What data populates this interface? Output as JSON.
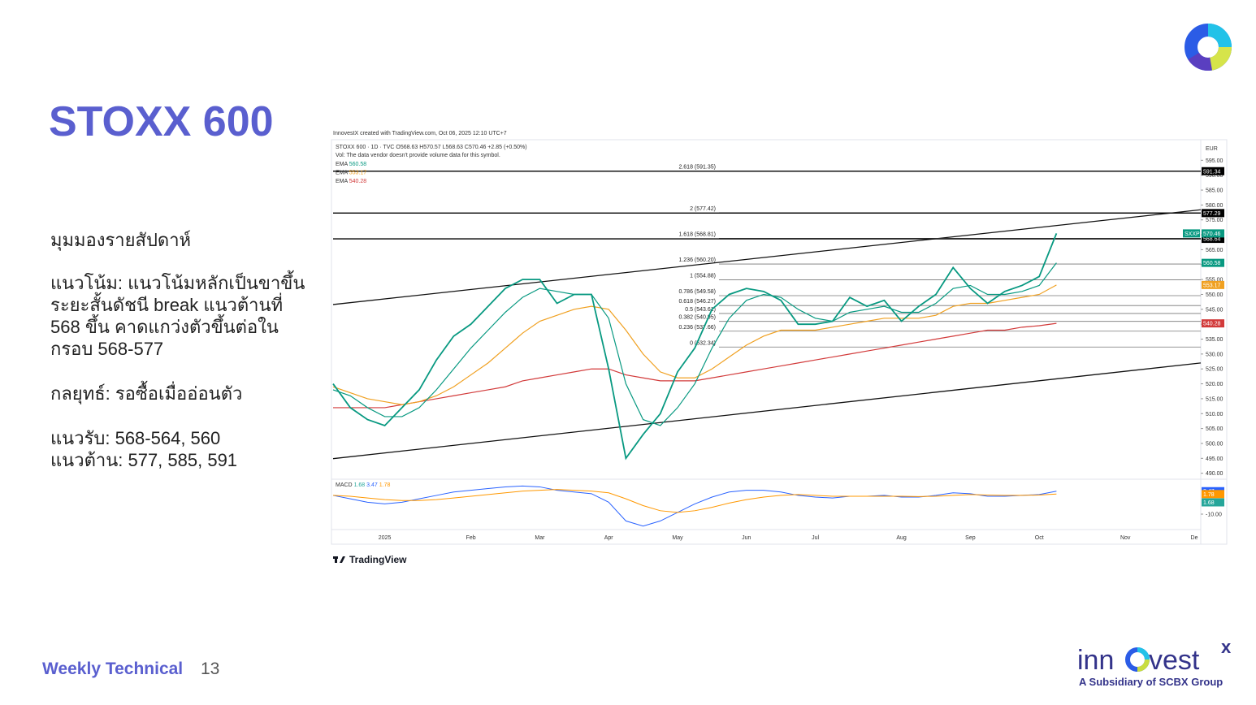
{
  "header": {
    "title": "STOXX 600"
  },
  "commentary": {
    "heading": "มุมมองรายสัปดาห์",
    "trend_lines": [
      "แนวโน้ม: แนวโน้มหลักเป็นขาขึ้น",
      "ระยะสั้นดัชนี break แนวต้านที่",
      "568 ขึ้น คาดแกว่งตัวขึ้นต่อใน",
      "กรอบ 568-577"
    ],
    "strategy": "กลยุทธ์: รอซื้อเมื่ออ่อนตัว",
    "support": "แนวรับ: 568-564, 560",
    "resistance": "แนวต้าน: 577, 585, 591"
  },
  "chart_data": {
    "type": "line",
    "credit": "InnovestX created with TradingView.com, Oct 06, 2025 12:10 UTC+7",
    "symbol_line": "STOXX 600 · 1D · TVC   O568.63 H570.57 L568.63 C570.46 +2.85 (+0.50%)",
    "volume_note": "Vol: The data vendor doesn't provide volume data for this symbol.",
    "currency": "EUR",
    "brand": "TradingView",
    "categories": [
      null,
      null,
      null,
      "2025",
      null,
      null,
      null,
      null,
      "Feb",
      null,
      null,
      null,
      "Mar",
      null,
      null,
      null,
      "Apr",
      null,
      null,
      null,
      "May",
      null,
      null,
      null,
      "Jun",
      null,
      null,
      null,
      "Jul",
      null,
      null,
      null,
      null,
      "Aug",
      null,
      null,
      null,
      "Sep",
      null,
      null,
      null,
      "Oct",
      null,
      null,
      null,
      null,
      "Nov",
      null,
      null,
      null,
      "De"
    ],
    "series": [
      {
        "name": "SXXP",
        "color": "#089981",
        "values": [
          520,
          512,
          508,
          506,
          512,
          518,
          528,
          536,
          540,
          546,
          552,
          555,
          555,
          547,
          550,
          550,
          525,
          495,
          503,
          510,
          524,
          532,
          545,
          550,
          552,
          551,
          548,
          540,
          540,
          541,
          549,
          546,
          548,
          541,
          546,
          550,
          559,
          552,
          547,
          551,
          553,
          556,
          570.46,
          null,
          null,
          null,
          null,
          null,
          null,
          null,
          null
        ]
      },
      {
        "name": "EMA",
        "color": "#089981",
        "values": [
          518,
          516,
          512,
          509,
          509,
          512,
          518,
          525,
          532,
          538,
          544,
          549,
          552,
          551,
          550,
          550,
          542,
          520,
          508,
          506,
          512,
          520,
          532,
          542,
          548,
          550,
          549,
          545,
          542,
          541,
          544,
          545,
          546,
          544,
          544,
          547,
          552,
          553,
          550,
          550,
          551,
          553,
          560.58,
          null,
          null,
          null,
          null,
          null,
          null,
          null,
          null
        ]
      },
      {
        "name": "EMA",
        "color": "#f0a020",
        "values": [
          519,
          517,
          515,
          514,
          513,
          514,
          516,
          519,
          523,
          527,
          532,
          537,
          541,
          543,
          545,
          546,
          545,
          538,
          530,
          524,
          522,
          522,
          525,
          529,
          533,
          536,
          538,
          538,
          538,
          539,
          540,
          541,
          542,
          542,
          542,
          543,
          546,
          547,
          547,
          548,
          549,
          550,
          553.17,
          null,
          null,
          null,
          null,
          null,
          null,
          null,
          null
        ]
      },
      {
        "name": "EMA",
        "color": "#d23a3a",
        "values": [
          512,
          512,
          512,
          512,
          513,
          514,
          515,
          516,
          517,
          518,
          519,
          521,
          522,
          523,
          524,
          525,
          525,
          523,
          522,
          521,
          521,
          521,
          522,
          523,
          524,
          525,
          526,
          527,
          528,
          529,
          530,
          531,
          532,
          533,
          534,
          535,
          536,
          537,
          538,
          538,
          539,
          539.5,
          540.28,
          null,
          null,
          null,
          null,
          null,
          null,
          null,
          null
        ]
      }
    ],
    "ylim": [
      488,
      597
    ],
    "yticks": [
      {
        "value": 490,
        "label": "490.00"
      },
      {
        "value": 495,
        "label": "495.00"
      },
      {
        "value": 500,
        "label": "500.00"
      },
      {
        "value": 505,
        "label": "505.00"
      },
      {
        "value": 510,
        "label": "510.00"
      },
      {
        "value": 515,
        "label": "515.00"
      },
      {
        "value": 520,
        "label": "520.00"
      },
      {
        "value": 525,
        "label": "525.00"
      },
      {
        "value": 530,
        "label": "530.00"
      },
      {
        "value": 535,
        "label": "535.00"
      },
      {
        "value": 540,
        "label": "540.00"
      },
      {
        "value": 545,
        "label": "545.00"
      },
      {
        "value": 550,
        "label": "550.00"
      },
      {
        "value": 555,
        "label": "555.00"
      },
      {
        "value": 560,
        "label": "560.00"
      },
      {
        "value": 565,
        "label": "565.00"
      },
      {
        "value": 570,
        "label": "570.00"
      },
      {
        "value": 575,
        "label": "575.00"
      },
      {
        "value": 580,
        "label": "580.00"
      },
      {
        "value": 585,
        "label": "585.00"
      },
      {
        "value": 590,
        "label": "590.00"
      },
      {
        "value": 595,
        "label": "595.00"
      }
    ],
    "horizontal_lines": [
      591.34,
      577.29,
      568.64
    ],
    "channel_lines": [
      {
        "start": 546.6,
        "end": 578.4
      },
      {
        "start": 494.9,
        "end": 527.0
      }
    ],
    "fib_levels": [
      {
        "label": "2.618 (591.35)",
        "value": 591.35
      },
      {
        "label": "2 (577.42)",
        "value": 577.42
      },
      {
        "label": "1.618 (568.81)",
        "value": 568.81
      },
      {
        "label": "1.236 (560.20)",
        "value": 560.2
      },
      {
        "label": "1 (554.88)",
        "value": 554.88
      },
      {
        "label": "0.786 (549.58)",
        "value": 549.58
      },
      {
        "label": "0.618 (546.27)",
        "value": 546.27
      },
      {
        "label": "0.5 (543.61)",
        "value": 543.61
      },
      {
        "label": "0.382 (540.95)",
        "value": 540.95
      },
      {
        "label": "0.236 (537.66)",
        "value": 537.66
      },
      {
        "label": "0 (532.34)",
        "value": 532.34
      }
    ],
    "macd": {
      "name": "MACD",
      "histogram_last": 1.68,
      "histogram_color": "#26a69a",
      "series": [
        {
          "color": "#2962ff",
          "values": [
            1,
            -1,
            -3,
            -4,
            -3,
            -1,
            1,
            3,
            4,
            5,
            6,
            6.5,
            6,
            4,
            3,
            2,
            -3,
            -14,
            -17,
            -14,
            -9,
            -4,
            0,
            3,
            4,
            4,
            3,
            1,
            0,
            -0.5,
            0.5,
            0.5,
            1,
            0,
            0,
            1,
            2.5,
            2,
            0.5,
            0.5,
            1,
            1.5,
            3.47,
            null,
            null,
            null,
            null,
            null,
            null,
            null,
            null
          ]
        },
        {
          "color": "#ff9800",
          "values": [
            1,
            0.5,
            -0.5,
            -1.5,
            -2,
            -2,
            -1.5,
            -0.5,
            0.5,
            1.5,
            2.5,
            3.5,
            4,
            4.5,
            4,
            3.5,
            2.5,
            -1,
            -5,
            -8,
            -9,
            -8,
            -6,
            -3.5,
            -1.5,
            0,
            1,
            1.5,
            1,
            0.5,
            0.5,
            0.5,
            0.5,
            0.5,
            0.3,
            0.5,
            1,
            1.5,
            1.2,
            1,
            1,
            1.2,
            1.78,
            null,
            null,
            null,
            null,
            null,
            null,
            null,
            null
          ]
        }
      ],
      "ylim": [
        -18.1,
        10.5
      ],
      "yticks": [
        {
          "value": -10,
          "label": "-10.00"
        }
      ]
    }
  },
  "footer": {
    "label": "Weekly Technical",
    "page": "13",
    "brand_prefix": "inn",
    "brand_suffix": "vest",
    "brand_mark": "x",
    "tagline": "A Subsidiary of SCBX Group"
  }
}
